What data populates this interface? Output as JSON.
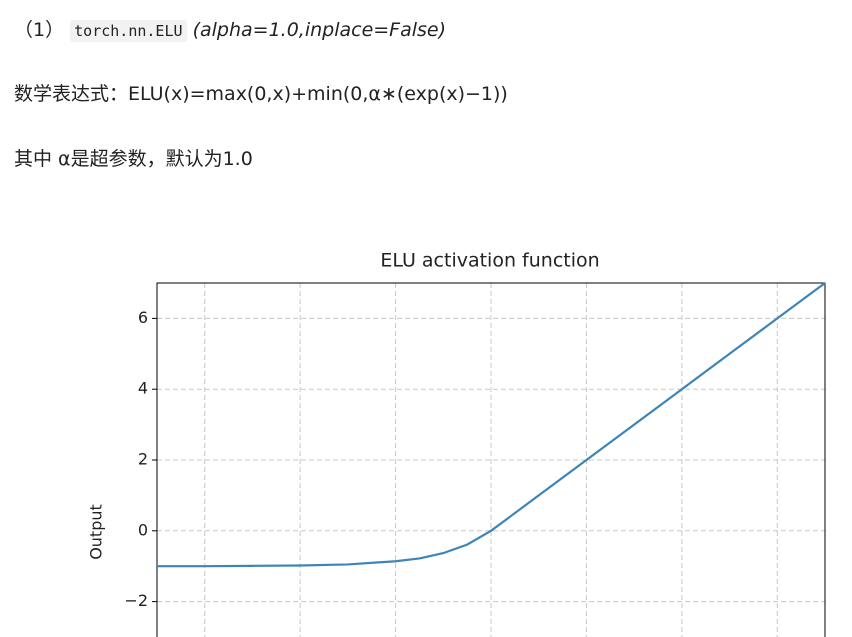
{
  "text": {
    "item_number": "（1）",
    "code": "torch.nn.ELU",
    "signature": "(alpha=1.0,inplace=False)",
    "formula": "数学表达式：ELU(x)=max(0,x)+min(0,α∗(exp(x)−1))",
    "note": "其中 α是超参数，默认为1.0"
  },
  "chart_data": {
    "type": "line",
    "title": "ELU activation function",
    "y_label": "Output",
    "x": [
      -7,
      -6,
      -5,
      -4,
      -3,
      -2,
      -1.5,
      -1,
      -0.5,
      0,
      1,
      2,
      3,
      4,
      5,
      6,
      7
    ],
    "values": [
      -1.0,
      -1.0,
      -0.99,
      -0.98,
      -0.95,
      -0.86,
      -0.78,
      -0.63,
      -0.39,
      0,
      1,
      2,
      3,
      4,
      5,
      6,
      7
    ],
    "color": "#3d85b8",
    "xlim": [
      -7,
      7
    ],
    "xticks": [
      -6,
      -4,
      -2,
      0,
      2,
      4,
      6
    ],
    "ylim": [
      -3,
      7
    ],
    "yticks": [
      {
        "value": -2,
        "label": "−2"
      },
      0,
      2,
      4,
      6
    ],
    "grid": true
  }
}
